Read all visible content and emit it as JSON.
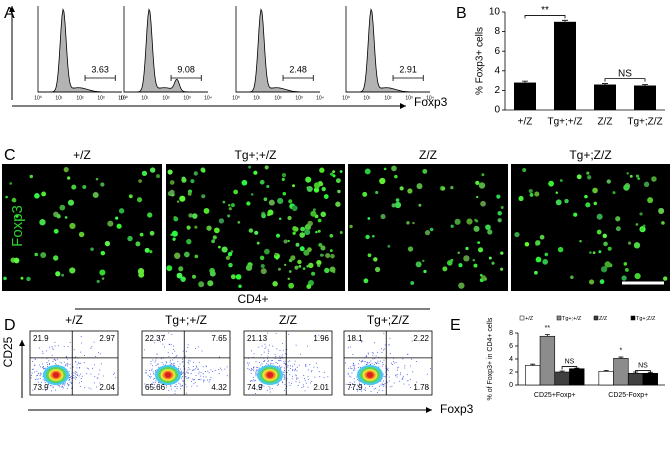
{
  "panel_labels": [
    "A",
    "B",
    "C",
    "D",
    "E"
  ],
  "panel_a": {
    "x_axis_label": "Foxp3",
    "axis_ticks": [
      "10⁰",
      "10¹",
      "10²",
      "10³",
      "10⁴"
    ],
    "gate_values": [
      3.63,
      9.08,
      2.48,
      2.91
    ]
  },
  "panel_c": {
    "columns": [
      "+/Z",
      "Tg+;+/Z",
      "Z/Z",
      "Tg+;Z/Z"
    ],
    "stain_label": "Foxp3"
  },
  "panel_d": {
    "group_label": "CD4+",
    "columns": [
      "+/Z",
      "Tg+;+/Z",
      "Z/Z",
      "Tg+;Z/Z"
    ],
    "y_axis_label": "CD25",
    "x_axis_label": "Foxp3",
    "quadrants": [
      [
        21.9,
        2.97,
        73.9,
        2.04
      ],
      [
        22.37,
        7.65,
        65.66,
        4.32
      ],
      [
        21.13,
        1.96,
        74.9,
        2.01
      ],
      [
        18.1,
        2.22,
        77.9,
        1.78
      ]
    ]
  },
  "chart_data": [
    {
      "type": "bar",
      "y_axis_label": "% Foxp3+ cells",
      "categories": [
        "+/Z",
        "Tg+;+/Z",
        "Z/Z",
        "Tg+;Z/Z"
      ],
      "values": [
        2.8,
        9.0,
        2.6,
        2.5
      ],
      "errors": [
        0.15,
        0.15,
        0.1,
        0.1
      ],
      "color": "#000000",
      "ylim": [
        0,
        10
      ],
      "yticks": [
        0,
        2,
        4,
        6,
        8,
        10
      ],
      "annotations": [
        "**",
        "NS"
      ]
    },
    {
      "type": "grouped_bar",
      "y_axis_label": "% of Foxp3+ in CD4+ cells",
      "categories": [
        "CD25+Foxp+",
        "CD25-Foxp+"
      ],
      "series": [
        {
          "name": "+/Z",
          "color": "#ffffff",
          "values": [
            3.0,
            2.1
          ],
          "errors": [
            0.2,
            0.15
          ]
        },
        {
          "name": "Tg+;+/Z",
          "color": "#8c8c8c",
          "values": [
            7.5,
            4.1
          ],
          "errors": [
            0.25,
            0.2
          ]
        },
        {
          "name": "Z/Z",
          "color": "#404040",
          "values": [
            2.0,
            1.8
          ],
          "errors": [
            0.15,
            0.2
          ]
        },
        {
          "name": "Tg+;Z/Z",
          "color": "#000000",
          "values": [
            2.5,
            1.8
          ],
          "errors": [
            0.1,
            0.15
          ]
        }
      ],
      "ylim": [
        0,
        8
      ],
      "yticks": [
        0,
        2,
        4,
        6,
        8
      ],
      "annotations": [
        "**",
        "NS",
        "*",
        "NS"
      ]
    }
  ]
}
